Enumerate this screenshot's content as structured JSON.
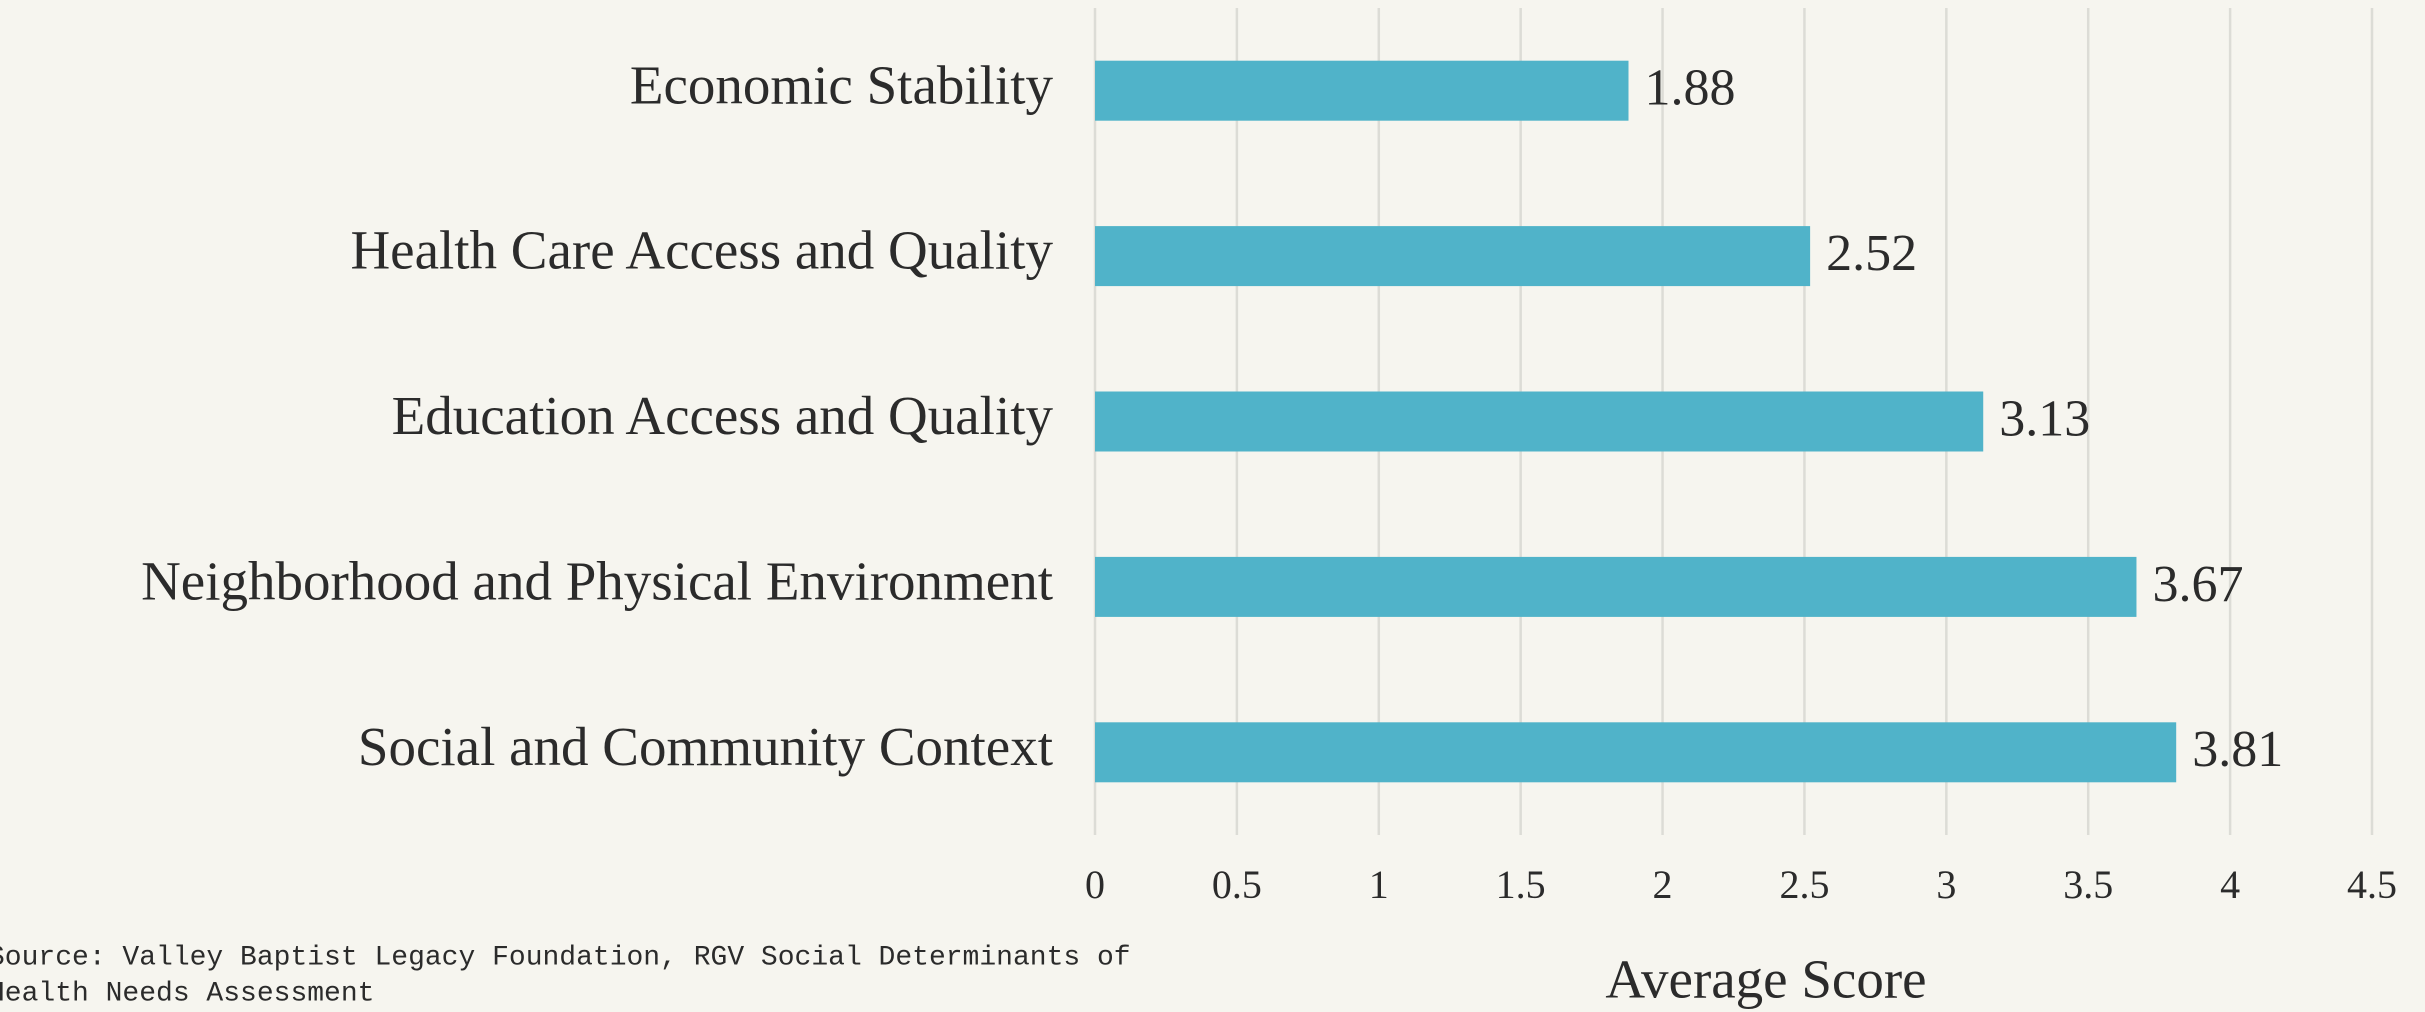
{
  "chart_data": {
    "type": "hbar",
    "categories": [
      "Economic Stability",
      "Health Care Access and Quality",
      "Education Access and Quality",
      "Neighborhood and Physical Environment",
      "Social and Community Context"
    ],
    "values": [
      1.88,
      2.52,
      3.13,
      3.67,
      3.81
    ],
    "color": "#50b3c9",
    "xlim": [
      0,
      4.5
    ],
    "xticks": [
      0,
      0.5,
      1,
      1.5,
      2,
      2.5,
      3,
      3.5,
      4,
      4.5
    ],
    "grid": true,
    "xlabel": "Average Score",
    "source": [
      "Source: Valley Baptist Legacy Foundation, RGV Social Determinants of",
      "Health Needs Assessment"
    ]
  }
}
